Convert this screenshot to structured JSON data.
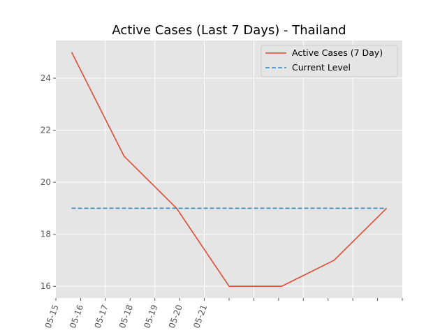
{
  "chart_data": {
    "type": "line",
    "title": "Active Cases (Last 7 Days) - Thailand",
    "xlabel": "",
    "ylabel": "",
    "grid": true,
    "legend_position": "top-right",
    "x_tick_labels": [
      "05-15",
      "05-16",
      "05-17",
      "05-18",
      "05-19",
      "05-20",
      "05-21"
    ],
    "y_ticks": [
      16,
      18,
      20,
      22,
      24
    ],
    "ylim": [
      15.55,
      25.45
    ],
    "xlim": [
      "05-15",
      "05-21"
    ],
    "series": [
      {
        "name": "Active Cases (7 Day)",
        "style": "solid",
        "color": "#E24A33",
        "points": [
          {
            "x": "05-15",
            "y": 25
          },
          {
            "x": "05-16",
            "y": 21
          },
          {
            "x": "05-17",
            "y": 19
          },
          {
            "x": "05-18",
            "y": 16
          },
          {
            "x": "05-19",
            "y": 16
          },
          {
            "x": "05-20",
            "y": 17
          },
          {
            "x": "05-21",
            "y": 19
          }
        ]
      },
      {
        "name": "Current Level",
        "style": "dashed",
        "color": "#348ABD",
        "points": [
          {
            "x": "05-15",
            "y": 19
          },
          {
            "x": "05-21",
            "y": 19
          }
        ]
      }
    ]
  }
}
